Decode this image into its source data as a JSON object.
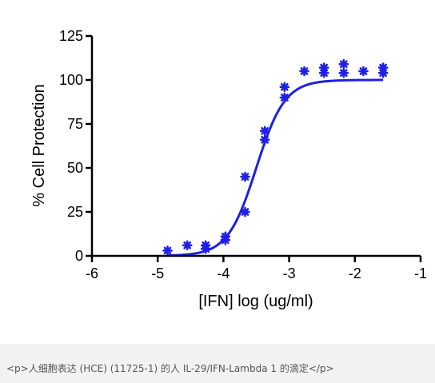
{
  "chart_data": {
    "type": "scatter",
    "title": "",
    "xlabel": "[IFN] log (ug/ml)",
    "ylabel": "% Cell Protection",
    "xlim": [
      -6,
      -1
    ],
    "ylim": [
      0,
      125
    ],
    "x_ticks": [
      -6,
      -5,
      -4,
      -3,
      -2,
      -1
    ],
    "y_ticks": [
      0,
      25,
      50,
      75,
      100,
      125
    ],
    "x_tick_labels": [
      "-6",
      "-5",
      "-4",
      "-3",
      "-2",
      "-1"
    ],
    "y_tick_labels": [
      "0",
      "25",
      "50",
      "75",
      "100",
      "125"
    ],
    "grid": false,
    "legend": "none",
    "colors": {
      "series": "#1f1fe6",
      "axis": "#000000"
    },
    "points": [
      {
        "x": -4.85,
        "y": 3
      },
      {
        "x": -4.55,
        "y": 6
      },
      {
        "x": -4.27,
        "y": 4
      },
      {
        "x": -4.27,
        "y": 6
      },
      {
        "x": -3.97,
        "y": 9
      },
      {
        "x": -3.97,
        "y": 11
      },
      {
        "x": -3.67,
        "y": 25
      },
      {
        "x": -3.67,
        "y": 45
      },
      {
        "x": -3.37,
        "y": 66
      },
      {
        "x": -3.37,
        "y": 71
      },
      {
        "x": -3.07,
        "y": 90
      },
      {
        "x": -3.07,
        "y": 96
      },
      {
        "x": -2.77,
        "y": 105
      },
      {
        "x": -2.47,
        "y": 104
      },
      {
        "x": -2.47,
        "y": 107
      },
      {
        "x": -2.17,
        "y": 104
      },
      {
        "x": -2.17,
        "y": 109
      },
      {
        "x": -1.87,
        "y": 105
      },
      {
        "x": -1.57,
        "y": 104
      },
      {
        "x": -1.57,
        "y": 107
      }
    ],
    "fit": {
      "model": "sigmoid",
      "bottom": 0,
      "top": 100,
      "log_ec50": -3.5,
      "hill_slope": 2,
      "x_range": [
        -4.85,
        -1.57
      ]
    }
  },
  "caption": "<p>人细胞表达 (HCE) (11725-1) 的人 IL-29/IFN-Lambda 1 的滴定</p>"
}
